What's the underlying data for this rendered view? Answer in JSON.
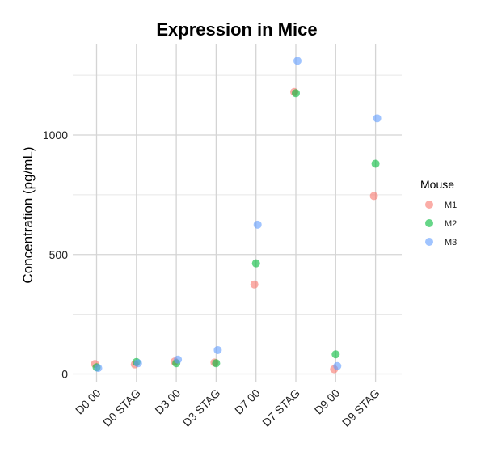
{
  "chart_data": {
    "type": "scatter",
    "title": "Expression in Mice",
    "xlabel": "",
    "ylabel": "Concentration (pg/mL)",
    "categories": [
      "D0 00",
      "D0 STAG",
      "D3 00",
      "D3 STAG",
      "D7 00",
      "D7 STAG",
      "D9 00",
      "D9 STAG"
    ],
    "ylim": [
      -10,
      1360
    ],
    "yticks": [
      0,
      500,
      1000
    ],
    "yticks_minor": [
      250,
      750,
      1250
    ],
    "grid": true,
    "legend_title": "Mouse",
    "legend_position": "right",
    "series": [
      {
        "name": "M1",
        "color": "#F8766D",
        "values": [
          42,
          40,
          52,
          48,
          375,
          1180,
          20,
          745
        ]
      },
      {
        "name": "M2",
        "color": "#00BA38",
        "values": [
          28,
          50,
          45,
          45,
          463,
          1175,
          82,
          880
        ]
      },
      {
        "name": "M3",
        "color": "#619CFF",
        "values": [
          25,
          45,
          60,
          100,
          625,
          1310,
          33,
          1070
        ]
      }
    ]
  }
}
